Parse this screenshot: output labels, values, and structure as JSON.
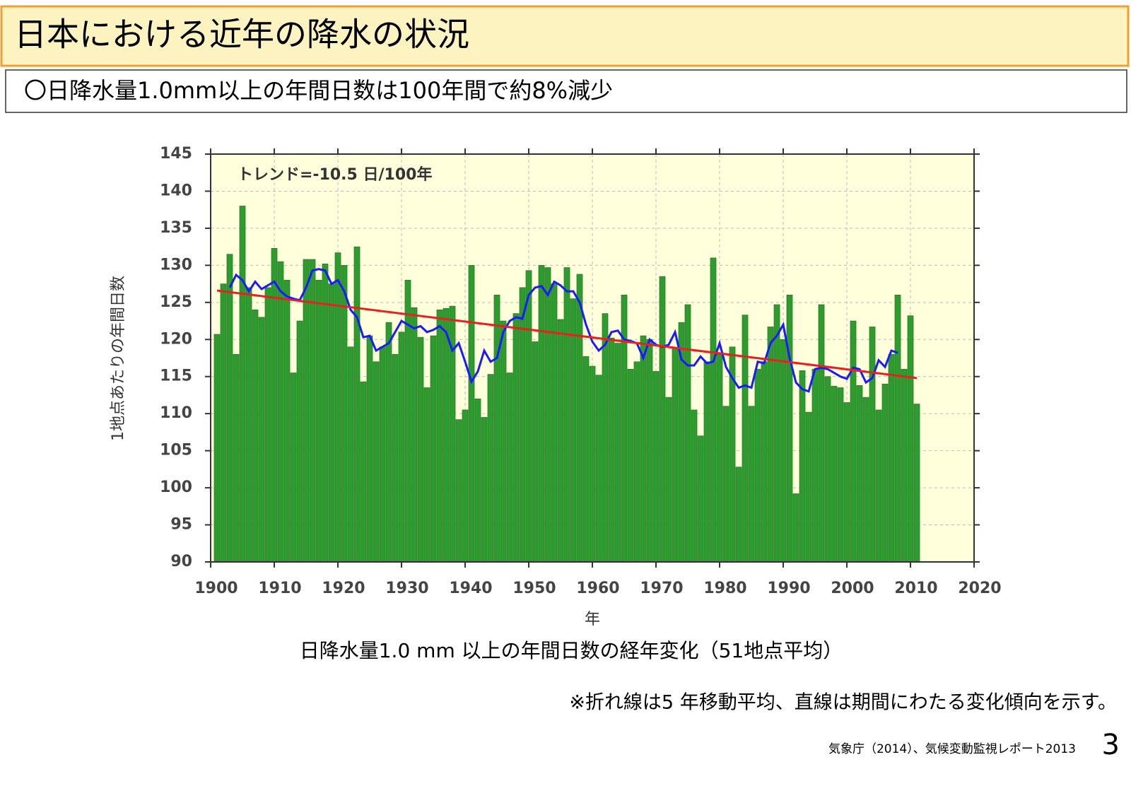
{
  "header": {
    "title": "日本における近年の降水の状況",
    "subtitle": "〇日降水量1.0mm以上の年間日数は100年間で約8%減少"
  },
  "chart_data": {
    "type": "bar",
    "annotation": "トレンド=-10.5 日/100年",
    "ylabel": "1地点あたりの年間日数",
    "xlabel": "年",
    "caption": "日降水量1.0 mm 以上の年間日数の経年変化（51地点平均）",
    "x": [
      1901,
      1902,
      1903,
      1904,
      1905,
      1906,
      1907,
      1908,
      1909,
      1910,
      1911,
      1912,
      1913,
      1914,
      1915,
      1916,
      1917,
      1918,
      1919,
      1920,
      1921,
      1922,
      1923,
      1924,
      1925,
      1926,
      1927,
      1928,
      1929,
      1930,
      1931,
      1932,
      1933,
      1934,
      1935,
      1936,
      1937,
      1938,
      1939,
      1940,
      1941,
      1942,
      1943,
      1944,
      1945,
      1946,
      1947,
      1948,
      1949,
      1950,
      1951,
      1952,
      1953,
      1954,
      1955,
      1956,
      1957,
      1958,
      1959,
      1960,
      1961,
      1962,
      1963,
      1964,
      1965,
      1966,
      1967,
      1968,
      1969,
      1970,
      1971,
      1972,
      1973,
      1974,
      1975,
      1976,
      1977,
      1978,
      1979,
      1980,
      1981,
      1982,
      1983,
      1984,
      1985,
      1986,
      1987,
      1988,
      1989,
      1990,
      1991,
      1992,
      1993,
      1994,
      1995,
      1996,
      1997,
      1998,
      1999,
      2000,
      2001,
      2002,
      2003,
      2004,
      2005,
      2006,
      2007,
      2008,
      2009,
      2010,
      2011
    ],
    "series": [
      {
        "color": "#2e9b2e",
        "values": [
          120.7,
          127.5,
          131.5,
          118,
          138,
          127,
          124,
          123,
          127,
          132.3,
          130.5,
          128,
          115.5,
          122.5,
          130.8,
          130.8,
          128,
          130.2,
          127.5,
          131.7,
          130,
          119,
          132.5,
          114.3,
          120.5,
          117,
          119,
          122.3,
          118,
          121,
          128,
          124.3,
          120.3,
          113.5,
          120.5,
          124,
          124.2,
          124.5,
          109.2,
          110.5,
          130,
          112,
          109.5,
          115.3,
          126,
          122.5,
          115.5,
          123.5,
          127,
          129.3,
          119.7,
          130,
          129.7,
          127.5,
          122.7,
          129.7,
          125.5,
          128.8,
          117.7,
          116.4,
          115.2,
          123.5,
          120.2,
          119.5,
          126,
          116,
          117,
          120.5,
          120,
          115.7,
          128.5,
          112.2,
          118.8,
          122.3,
          124.7,
          110.5,
          107,
          117,
          131,
          118,
          111,
          119,
          102.8,
          123.3,
          111,
          116,
          117,
          121.7,
          124.7,
          120,
          126,
          99.2,
          115.8,
          110.2,
          116,
          124.7,
          115,
          113.7,
          113.5,
          111.5,
          122.5,
          113.8,
          112.2,
          121.7,
          110.5,
          114,
          118,
          126,
          116,
          123.2,
          111.3
        ]
      },
      {
        "type": "line",
        "color": "#1a1aff",
        "values": [
          null,
          null,
          127,
          128.7,
          128,
          126.5,
          127.8,
          126.8,
          127.3,
          127.8,
          126.5,
          125.8,
          125.5,
          125.3,
          127,
          129.3,
          129.5,
          129.3,
          127.5,
          128,
          126.5,
          124,
          123,
          120.3,
          120.5,
          118.5,
          119,
          119.5,
          121,
          122.5,
          122,
          121.5,
          121.8,
          121,
          121.3,
          121.8,
          121,
          118.5,
          119.5,
          117,
          114.3,
          115.7,
          118.5,
          117,
          117.5,
          121,
          122.5,
          123,
          122.8,
          126,
          127,
          127.2,
          126,
          127.8,
          127.3,
          126.5,
          126.5,
          125,
          122,
          119.7,
          118.5,
          119.3,
          121,
          121.2,
          120,
          119.8,
          119.5,
          117.5,
          120,
          119.3,
          119,
          119.3,
          121,
          117.3,
          116.5,
          116.5,
          117.7,
          116.8,
          117,
          119.5,
          116.3,
          114.8,
          113.5,
          113.8,
          113.5,
          117,
          116.8,
          119.5,
          120.5,
          122,
          117.5,
          114.2,
          113.3,
          113,
          116,
          116.2,
          116,
          115.5,
          115,
          114.7,
          116.2,
          116,
          114.2,
          114.8,
          117.2,
          116.3,
          118.5,
          118.2,
          null,
          null,
          null
        ]
      }
    ],
    "trend": {
      "color": "#e82020",
      "x": [
        1901,
        2011
      ],
      "values": [
        126.6,
        114.8
      ]
    },
    "xlim": [
      1900,
      2020
    ],
    "xticks": [
      1900,
      1910,
      1920,
      1930,
      1940,
      1950,
      1960,
      1970,
      1980,
      1990,
      2000,
      2010,
      2020
    ],
    "ylim": [
      90,
      145
    ],
    "yticks": [
      90,
      95,
      100,
      105,
      110,
      115,
      120,
      125,
      130,
      135,
      140,
      145
    ],
    "grid": true
  },
  "footer": {
    "note": "※折れ線は5 年移動平均、直線は期間にわたる変化傾向を示す。",
    "source": "気象庁（2014）、気候変動監視レポート2013",
    "page": "3"
  }
}
